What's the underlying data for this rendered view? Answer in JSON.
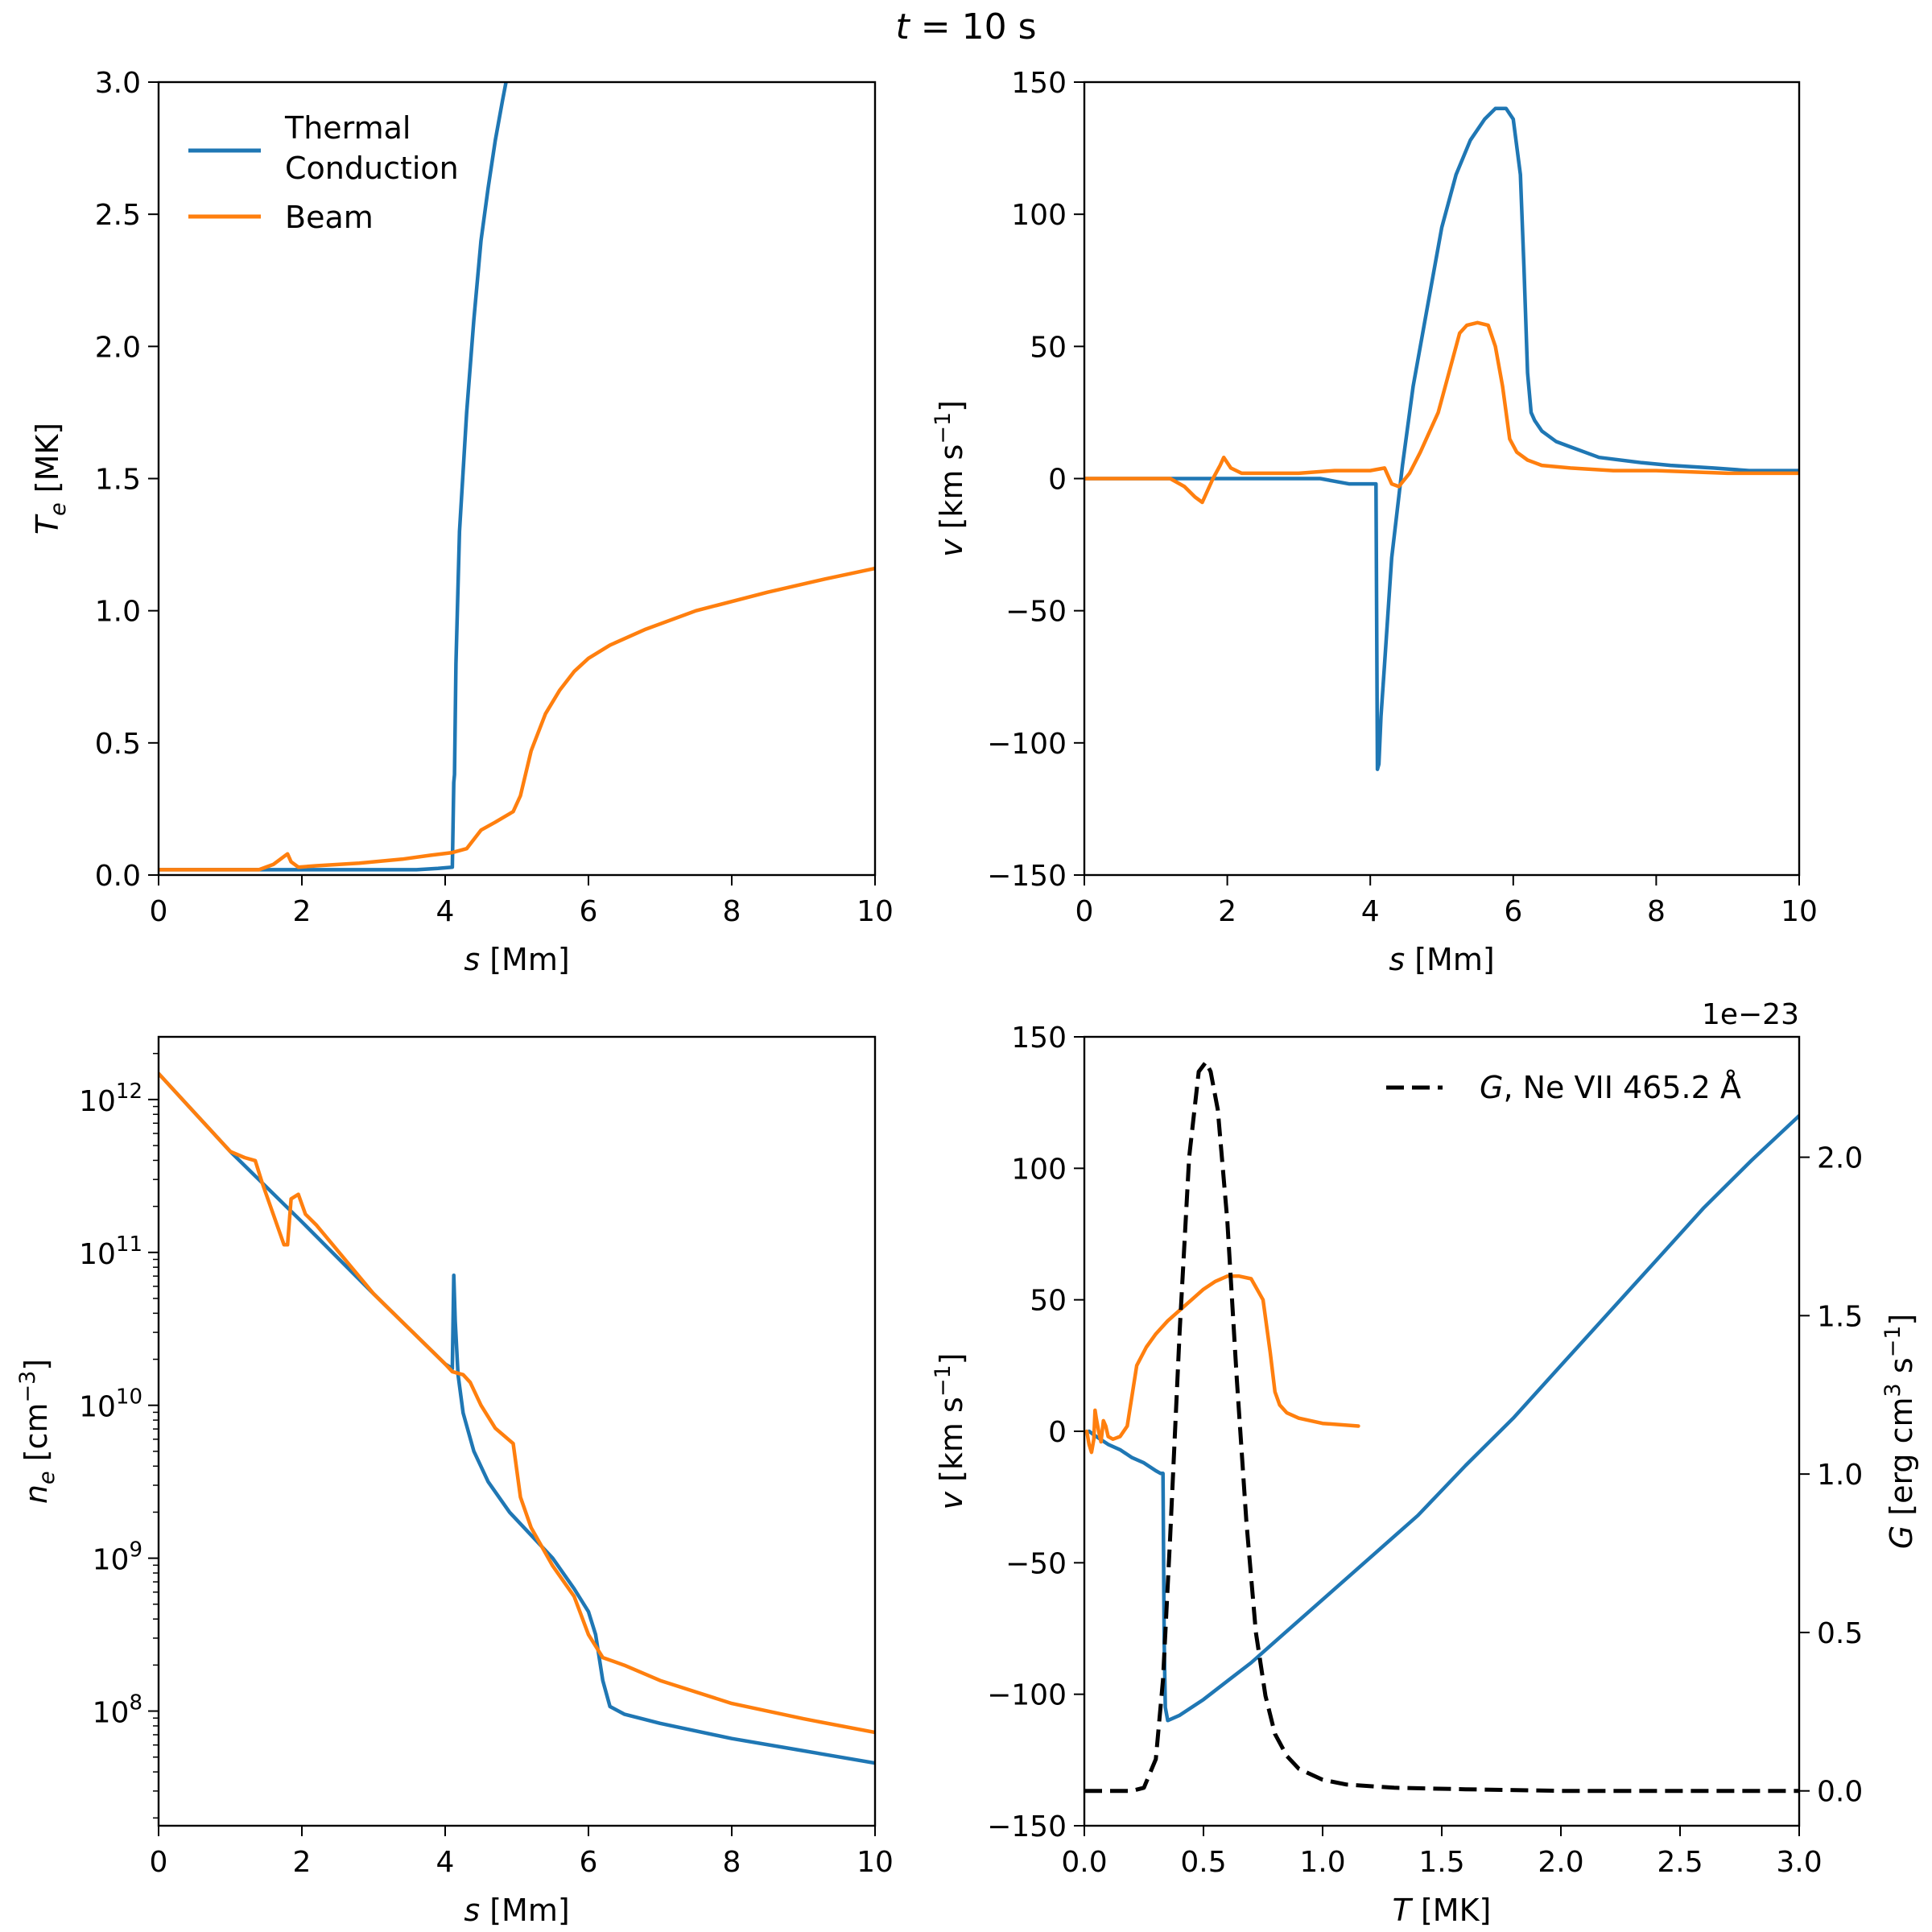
{
  "suptitle": {
    "var": "t",
    "rest": " = 10 s"
  },
  "colors": {
    "thermal": "#1f77b4",
    "beam": "#ff7f0e",
    "G": "#000000"
  },
  "chart_data": [
    {
      "id": "te",
      "type": "line",
      "xlabel": {
        "var": "s",
        "unit": " [Mm]"
      },
      "ylabel": {
        "var": "T",
        "sub": "e",
        "unit": " [MK]"
      },
      "xlim": [
        0,
        10
      ],
      "ylim": [
        0,
        3.0
      ],
      "xticks": [
        "0",
        "2",
        "4",
        "6",
        "8",
        "10"
      ],
      "xtick_values": [
        0,
        2,
        4,
        6,
        8,
        10
      ],
      "yticks": [
        "0.0",
        "0.5",
        "1.0",
        "1.5",
        "2.0",
        "2.5",
        "3.0"
      ],
      "ytick_values": [
        0,
        0.5,
        1.0,
        1.5,
        2.0,
        2.5,
        3.0
      ],
      "legend": {
        "position": "upper-left",
        "entries": [
          {
            "label_line1": "Thermal",
            "label_line2": "Conduction",
            "series": "thermal"
          },
          {
            "label_line1": "Beam",
            "series": "beam"
          }
        ]
      },
      "series": [
        {
          "name": "Thermal Conduction",
          "key": "thermal",
          "x": [
            0,
            1.4,
            2,
            3,
            3.6,
            3.9,
            4.1,
            4.12,
            4.13,
            4.15,
            4.2,
            4.3,
            4.4,
            4.5,
            4.6,
            4.7,
            4.8,
            4.85
          ],
          "y": [
            0.02,
            0.02,
            0.02,
            0.02,
            0.02,
            0.025,
            0.03,
            0.35,
            0.38,
            0.8,
            1.3,
            1.75,
            2.1,
            2.4,
            2.6,
            2.78,
            2.93,
            3.0
          ]
        },
        {
          "name": "Beam",
          "key": "beam",
          "x": [
            0,
            1.4,
            1.6,
            1.8,
            1.85,
            1.95,
            2.2,
            2.8,
            3.4,
            3.8,
            4.1,
            4.3,
            4.5,
            4.7,
            4.95,
            5.05,
            5.2,
            5.4,
            5.6,
            5.8,
            6.0,
            6.3,
            6.8,
            7.5,
            8.5,
            9.3,
            10
          ],
          "y": [
            0.02,
            0.02,
            0.04,
            0.08,
            0.05,
            0.03,
            0.035,
            0.045,
            0.06,
            0.075,
            0.085,
            0.1,
            0.17,
            0.2,
            0.24,
            0.3,
            0.47,
            0.61,
            0.7,
            0.77,
            0.82,
            0.87,
            0.93,
            1.0,
            1.07,
            1.12,
            1.16
          ]
        }
      ]
    },
    {
      "id": "v",
      "type": "line",
      "xlabel": {
        "var": "s",
        "unit": " [Mm]"
      },
      "ylabel": {
        "var": "v",
        "unit": " [km s",
        "sup": "−1",
        "close": "]"
      },
      "xlim": [
        0,
        10
      ],
      "ylim": [
        -150,
        150
      ],
      "xticks": [
        "0",
        "2",
        "4",
        "6",
        "8",
        "10"
      ],
      "xtick_values": [
        0,
        2,
        4,
        6,
        8,
        10
      ],
      "yticks": [
        "−150",
        "−100",
        "−50",
        "0",
        "50",
        "100",
        "150"
      ],
      "ytick_values": [
        -150,
        -100,
        -50,
        0,
        50,
        100,
        150
      ],
      "series": [
        {
          "name": "Thermal Conduction",
          "key": "thermal",
          "x": [
            0,
            1,
            2,
            3,
            3.3,
            3.5,
            3.7,
            4.08,
            4.1,
            4.12,
            4.15,
            4.2,
            4.3,
            4.45,
            4.6,
            4.8,
            5.0,
            5.2,
            5.4,
            5.6,
            5.75,
            5.9,
            6.0,
            6.1,
            6.15,
            6.2,
            6.25,
            6.3,
            6.4,
            6.6,
            6.8,
            7.2,
            7.8,
            8.2,
            8.8,
            9.3,
            10
          ],
          "y": [
            0,
            0,
            0,
            0,
            0,
            -1,
            -2,
            -2,
            -110,
            -108,
            -90,
            -70,
            -30,
            5,
            35,
            65,
            95,
            115,
            128,
            136,
            140,
            140,
            136,
            115,
            80,
            40,
            25,
            22,
            18,
            14,
            12,
            8,
            6,
            5,
            4,
            3,
            3
          ]
        },
        {
          "name": "Beam",
          "key": "beam",
          "x": [
            0,
            1.0,
            1.2,
            1.4,
            1.55,
            1.65,
            1.8,
            1.9,
            1.95,
            2.05,
            2.2,
            2.6,
            3.0,
            3.5,
            4.0,
            4.2,
            4.3,
            4.4,
            4.55,
            4.7,
            4.95,
            5.1,
            5.25,
            5.35,
            5.5,
            5.65,
            5.75,
            5.85,
            5.95,
            6.05,
            6.2,
            6.4,
            6.8,
            7.4,
            8.0,
            9.0,
            10
          ],
          "y": [
            0,
            0,
            0,
            -3,
            -7,
            -9,
            0,
            5,
            8,
            4,
            2,
            2,
            2,
            3,
            3,
            4,
            -2,
            -3,
            2,
            10,
            25,
            40,
            55,
            58,
            59,
            58,
            50,
            35,
            15,
            10,
            7,
            5,
            4,
            3,
            3,
            2,
            2
          ]
        }
      ]
    },
    {
      "id": "ne",
      "type": "line",
      "yscale": "log",
      "xlabel": {
        "var": "s",
        "unit": " [Mm]"
      },
      "ylabel": {
        "var": "n",
        "sub": "e",
        "unit": " [cm",
        "sup": "−3",
        "close": "]"
      },
      "xlim": [
        0,
        10
      ],
      "ylim_log10": [
        7.25,
        12.41
      ],
      "xticks": [
        "0",
        "2",
        "4",
        "6",
        "8",
        "10"
      ],
      "xtick_values": [
        0,
        2,
        4,
        6,
        8,
        10
      ],
      "yticks": [
        {
          "base": "10",
          "exp": "8"
        },
        {
          "base": "10",
          "exp": "9"
        },
        {
          "base": "10",
          "exp": "10"
        },
        {
          "base": "10",
          "exp": "11"
        },
        {
          "base": "10",
          "exp": "12"
        }
      ],
      "ytick_values_log10": [
        8,
        9,
        10,
        11,
        12
      ],
      "series": [
        {
          "name": "Thermal Conduction",
          "key": "thermal",
          "x": [
            0,
            1,
            2,
            3,
            4,
            4.1,
            4.12,
            4.14,
            4.18,
            4.25,
            4.4,
            4.6,
            4.9,
            5.2,
            5.5,
            5.8,
            6.0,
            6.1,
            6.2,
            6.3,
            6.5,
            7,
            8,
            9,
            10
          ],
          "log10y": [
            12.17,
            11.66,
            11.2,
            10.73,
            10.27,
            10.24,
            10.85,
            10.55,
            10.2,
            9.95,
            9.7,
            9.5,
            9.3,
            9.15,
            9.0,
            8.8,
            8.65,
            8.5,
            8.2,
            8.03,
            7.98,
            7.92,
            7.82,
            7.74,
            7.66
          ]
        },
        {
          "name": "Beam",
          "key": "beam",
          "x": [
            0,
            1,
            1.2,
            1.35,
            1.45,
            1.6,
            1.75,
            1.8,
            1.85,
            1.95,
            2.05,
            2.2,
            3,
            4,
            4.1,
            4.25,
            4.35,
            4.5,
            4.7,
            4.95,
            5.05,
            5.2,
            5.5,
            5.8,
            6.0,
            6.2,
            6.5,
            7,
            8,
            9,
            10
          ],
          "log10y": [
            12.17,
            11.66,
            11.62,
            11.6,
            11.45,
            11.25,
            11.05,
            11.05,
            11.35,
            11.38,
            11.25,
            11.18,
            10.73,
            10.27,
            10.22,
            10.2,
            10.15,
            10.0,
            9.85,
            9.75,
            9.4,
            9.2,
            8.95,
            8.75,
            8.5,
            8.35,
            8.3,
            8.2,
            8.05,
            7.95,
            7.86
          ]
        }
      ]
    },
    {
      "id": "vT",
      "type": "line",
      "xlabel": {
        "var": "T",
        "unit": " [MK]"
      },
      "ylabel": {
        "var": "v",
        "unit": " [km s",
        "sup": "−1",
        "close": "]"
      },
      "ylabel_right": {
        "var": "G",
        "unit": " [erg cm",
        "sup": "3",
        "mid": " s",
        "sup2": "−1",
        "close": "]"
      },
      "offset_text": "1e−23",
      "xlim": [
        0,
        3.0
      ],
      "ylim": [
        -150,
        150
      ],
      "ylim_right": [
        -0.11,
        2.38
      ],
      "xticks": [
        "0.0",
        "0.5",
        "1.0",
        "1.5",
        "2.0",
        "2.5",
        "3.0"
      ],
      "xtick_values": [
        0,
        0.5,
        1.0,
        1.5,
        2.0,
        2.5,
        3.0
      ],
      "yticks": [
        "−150",
        "−100",
        "−50",
        "0",
        "50",
        "100",
        "150"
      ],
      "ytick_values": [
        -150,
        -100,
        -50,
        0,
        50,
        100,
        150
      ],
      "yticks_right": [
        "0.0",
        "0.5",
        "1.0",
        "1.5",
        "2.0"
      ],
      "ytick_values_right": [
        0,
        0.5,
        1.0,
        1.5,
        2.0
      ],
      "legend": {
        "position": "upper-right",
        "entries": [
          {
            "var": "G",
            "rest": ", Ne VII 465.2 Å",
            "series": "G"
          }
        ]
      },
      "series": [
        {
          "name": "Thermal Conduction",
          "key": "thermal",
          "axis": "left",
          "x": [
            0.02,
            0.05,
            0.1,
            0.15,
            0.2,
            0.25,
            0.3,
            0.32,
            0.33,
            0.335,
            0.34,
            0.35,
            0.4,
            0.5,
            0.6,
            0.7,
            0.8,
            0.9,
            1.0,
            1.2,
            1.4,
            1.6,
            1.8,
            2.0,
            2.2,
            2.4,
            2.6,
            2.8,
            3.0
          ],
          "y": [
            0,
            -2,
            -5,
            -7,
            -10,
            -12,
            -15,
            -16,
            -16,
            -80,
            -105,
            -110,
            -108,
            -102,
            -95,
            -88,
            -80,
            -72,
            -64,
            -48,
            -32,
            -13,
            5,
            25,
            45,
            65,
            85,
            103,
            120
          ]
        },
        {
          "name": "Beam",
          "key": "beam",
          "axis": "left",
          "x": [
            0.01,
            0.02,
            0.03,
            0.04,
            0.045,
            0.05,
            0.06,
            0.07,
            0.08,
            0.09,
            0.1,
            0.12,
            0.15,
            0.18,
            0.22,
            0.26,
            0.3,
            0.35,
            0.4,
            0.45,
            0.5,
            0.55,
            0.6,
            0.65,
            0.7,
            0.75,
            0.78,
            0.8,
            0.82,
            0.85,
            0.9,
            1.0,
            1.15
          ],
          "y": [
            0,
            -5,
            -8,
            -3,
            8,
            5,
            0,
            -4,
            4,
            2,
            -2,
            -3,
            -2,
            2,
            25,
            32,
            37,
            42,
            46,
            50,
            54,
            57,
            59,
            59,
            58,
            50,
            30,
            15,
            10,
            7,
            5,
            3,
            2
          ]
        },
        {
          "name": "G, Ne VII 465.2 Å",
          "key": "G",
          "axis": "right",
          "dashed": true,
          "x": [
            0,
            0.1,
            0.2,
            0.25,
            0.3,
            0.33,
            0.36,
            0.4,
            0.44,
            0.48,
            0.51,
            0.53,
            0.56,
            0.6,
            0.64,
            0.68,
            0.72,
            0.76,
            0.8,
            0.85,
            0.9,
            1.0,
            1.1,
            1.3,
            1.6,
            2.0,
            2.5,
            3.0
          ],
          "y": [
            0,
            0,
            0,
            0.01,
            0.1,
            0.35,
            0.8,
            1.45,
            2.0,
            2.27,
            2.3,
            2.27,
            2.15,
            1.8,
            1.3,
            0.85,
            0.5,
            0.3,
            0.18,
            0.11,
            0.07,
            0.035,
            0.02,
            0.01,
            0.005,
            0.0,
            0.0,
            0.0
          ]
        }
      ]
    }
  ]
}
